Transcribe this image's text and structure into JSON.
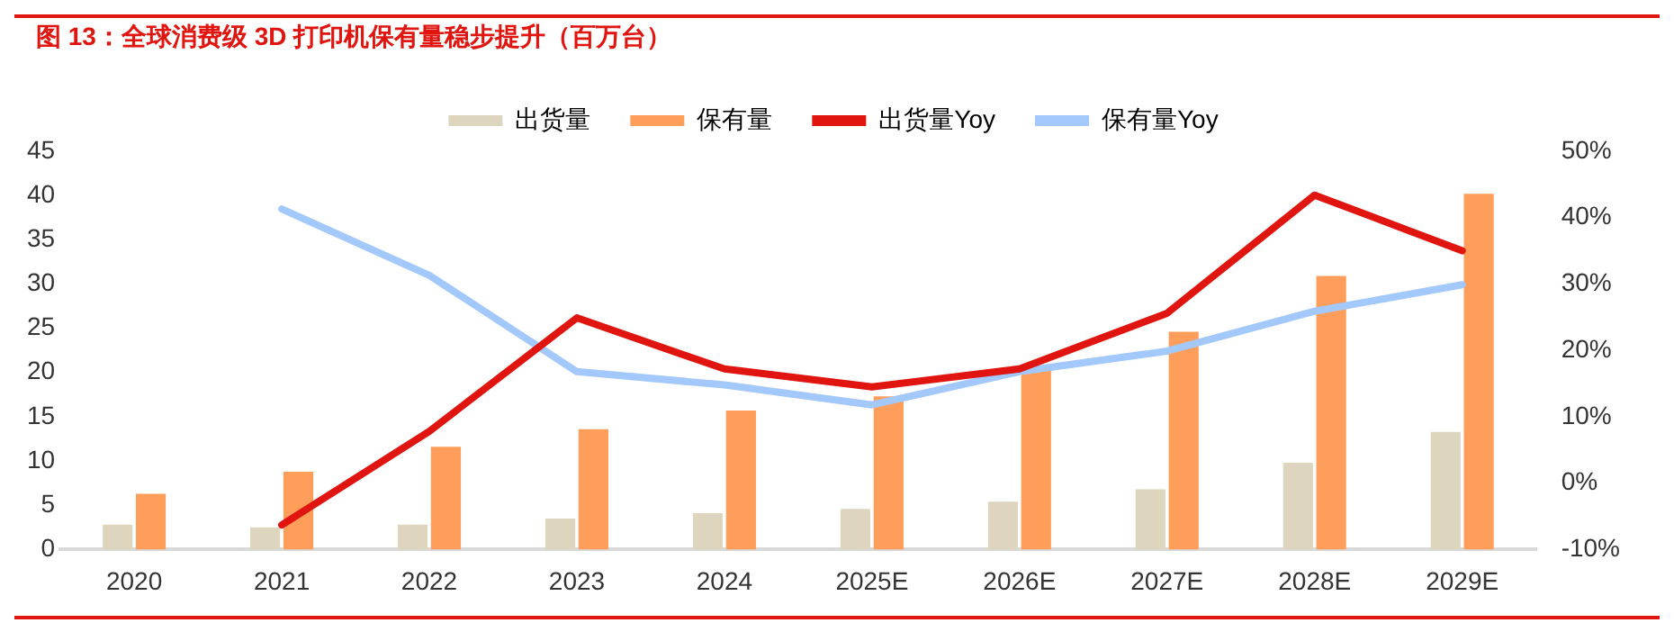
{
  "chart_data": {
    "type": "bar",
    "title": "图 13：全球消费级 3D 打印机保有量稳步提升（百万台）",
    "categories": [
      "2020",
      "2021",
      "2022",
      "2023",
      "2024",
      "2025E",
      "2026E",
      "2027E",
      "2028E",
      "2029E"
    ],
    "series": [
      {
        "name": "出货量",
        "color": "#ddd5bd",
        "values": [
          2.8,
          2.5,
          2.8,
          3.5,
          4.1,
          4.6,
          5.4,
          6.8,
          9.8,
          13.3
        ]
      },
      {
        "name": "保有量",
        "color": "#ff9e5a",
        "values": [
          6.3,
          8.8,
          11.6,
          13.6,
          15.7,
          17.3,
          20.4,
          24.6,
          30.9,
          40.2
        ]
      },
      {
        "name": "出货量Yoy",
        "type": "line",
        "axis": "y2",
        "color": "#e0150f",
        "values": [
          null,
          -6.3,
          7.8,
          24.9,
          17.2,
          14.5,
          17.2,
          25.6,
          43.4,
          35.0
        ]
      },
      {
        "name": "保有量Yoy",
        "type": "line",
        "axis": "y2",
        "color": "#a3c8fb",
        "values": [
          null,
          41.3,
          31.3,
          16.8,
          14.8,
          11.8,
          16.8,
          19.9,
          25.9,
          29.9
        ]
      }
    ],
    "ylim": [
      0,
      45
    ],
    "yticks": [
      0,
      5,
      10,
      15,
      20,
      25,
      30,
      35,
      40,
      45
    ],
    "y2lim": [
      -10,
      50
    ],
    "y2ticks": [
      {
        "value": -10,
        "label": "-10%"
      },
      {
        "value": 0,
        "label": "0%"
      },
      {
        "value": 10,
        "label": "10%"
      },
      {
        "value": 20,
        "label": "20%"
      },
      {
        "value": 30,
        "label": "30%"
      },
      {
        "value": 40,
        "label": "40%"
      },
      {
        "value": 50,
        "label": "50%"
      }
    ],
    "grid": false,
    "legend": "top",
    "marker": "none",
    "line_style": "solid"
  }
}
